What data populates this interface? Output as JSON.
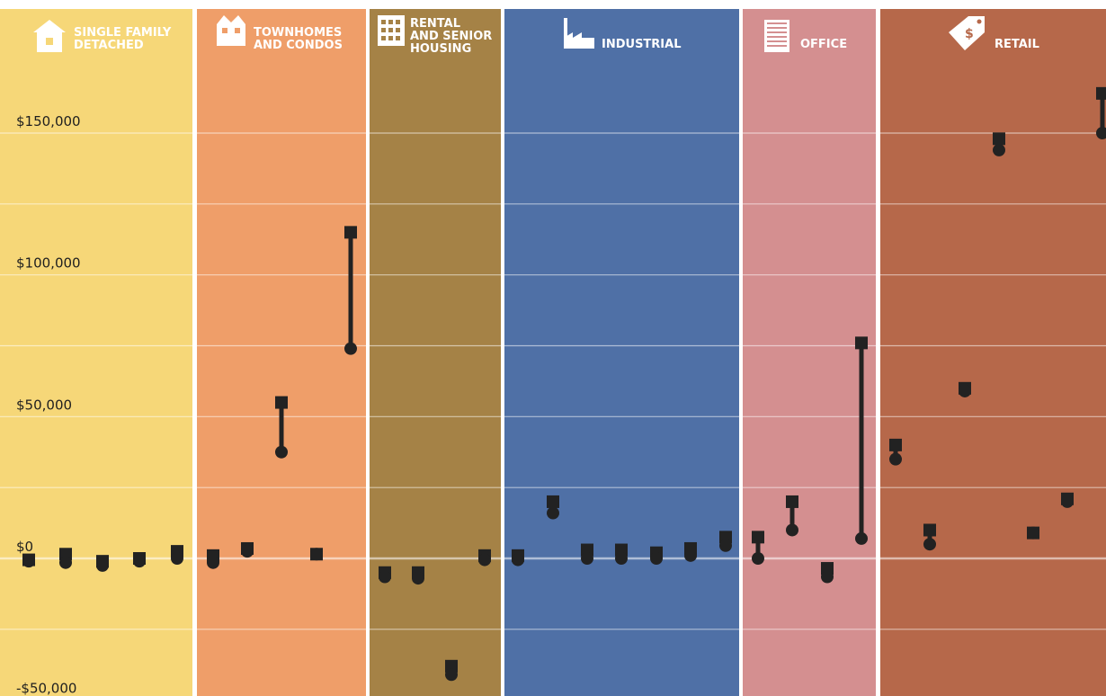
{
  "chart_data": {
    "type": "range",
    "ylim": [
      -50000,
      160000
    ],
    "ticks": [
      {
        "value": 150000,
        "label": "$150,000"
      },
      {
        "value": 100000,
        "label": "$100,000"
      },
      {
        "value": 50000,
        "label": "$50,000"
      },
      {
        "value": 0,
        "label": "$0"
      },
      {
        "value": -50000,
        "label": "-$50,000"
      }
    ],
    "categories": [
      {
        "name": [
          "SINGLE FAMILY",
          "DETACHED"
        ],
        "icon": "house-icon",
        "color": "#f6d778",
        "points": [
          {
            "square": -500,
            "circle": -1000
          },
          {
            "square": 1500,
            "circle": -1500
          },
          {
            "square": -1000,
            "circle": -2500
          },
          {
            "square": 0,
            "circle": -1000
          },
          {
            "square": 2500,
            "circle": 0
          }
        ]
      },
      {
        "name": [
          "TOWNHOMES",
          "AND CONDOS"
        ],
        "icon": "townhouse-icon",
        "color": "#ef9e69",
        "points": [
          {
            "square": 1000,
            "circle": -1500
          },
          {
            "square": 3500,
            "circle": 2500
          },
          {
            "square": 55000,
            "circle": 37500
          },
          {
            "square": 1500,
            "circle": 1500
          },
          {
            "square": 115000,
            "circle": 74000
          }
        ]
      },
      {
        "name": [
          "RENTAL",
          "AND SENIOR",
          "HOUSING"
        ],
        "icon": "apartment-icon",
        "color": "#a58246",
        "points": [
          {
            "square": -5000,
            "circle": -6500
          },
          {
            "square": -5000,
            "circle": -7000
          },
          {
            "square": -38000,
            "circle": -41000
          },
          {
            "square": 1000,
            "circle": -500
          }
        ]
      },
      {
        "name": [
          "INDUSTRIAL"
        ],
        "icon": "factory-icon",
        "color": "#4f70a6",
        "points": [
          {
            "square": 1000,
            "circle": -500
          },
          {
            "square": 20000,
            "circle": 16000
          },
          {
            "square": 3000,
            "circle": 0
          },
          {
            "square": 3000,
            "circle": 0
          },
          {
            "square": 2000,
            "circle": 0
          },
          {
            "square": 3500,
            "circle": 1000
          },
          {
            "square": 7500,
            "circle": 4500
          }
        ]
      },
      {
        "name": [
          "OFFICE"
        ],
        "icon": "office-building-icon",
        "color": "#d48f90",
        "points": [
          {
            "square": 7500,
            "circle": 0
          },
          {
            "square": 20000,
            "circle": 10000
          },
          {
            "square": -3500,
            "circle": -6500
          },
          {
            "square": 76000,
            "circle": 7000
          }
        ]
      },
      {
        "name": [
          "RETAIL"
        ],
        "icon": "price-tag-icon",
        "color": "#b6684a",
        "points": [
          {
            "square": 40000,
            "circle": 35000
          },
          {
            "square": 10000,
            "circle": 5000
          },
          {
            "square": 60000,
            "circle": 59000
          },
          {
            "square": 148000,
            "circle": 144000
          },
          {
            "square": 9000,
            "circle": 9000
          },
          {
            "square": 21000,
            "circle": 20000
          },
          {
            "square": 164000,
            "circle": 150000
          }
        ]
      }
    ]
  }
}
